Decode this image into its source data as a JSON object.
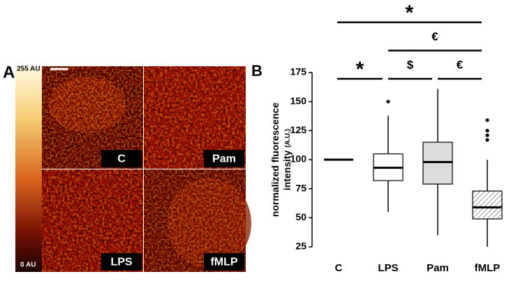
{
  "panel_a": {
    "label": "A",
    "colorbar_max": "255 AU",
    "colorbar_min": "0 AU",
    "images": [
      "C",
      "Pam",
      "LPS",
      "fMLP"
    ]
  },
  "chart_data": {
    "type": "box",
    "panel_label": "B",
    "ylabel": [
      "normalized fluorescence",
      "intensity"
    ],
    "ylabel_unit": "(A.U.)",
    "categories": [
      "C",
      "LPS",
      "Pam",
      "fMLP"
    ],
    "stats": [
      {
        "min": 100,
        "q1": 100,
        "median": 100,
        "q3": 100,
        "max": 100,
        "outliers": [],
        "fill": "none"
      },
      {
        "min": 55,
        "q1": 82,
        "median": 93,
        "q3": 105,
        "max": 138,
        "outliers": [
          150
        ],
        "fill": "#ffffff"
      },
      {
        "min": 35,
        "q1": 79,
        "median": 98,
        "q3": 115,
        "max": 161,
        "outliers": [],
        "fill": "#dcdcdc"
      },
      {
        "min": 25,
        "q1": 49,
        "median": 59,
        "q3": 73,
        "max": 100,
        "outliers": [
          117,
          121,
          125,
          134
        ],
        "fill": "hatch"
      }
    ],
    "ylim": [
      25,
      175
    ],
    "yticks": [
      25,
      50,
      75,
      100,
      125,
      150,
      175
    ],
    "annotations": [
      {
        "text": "*",
        "groups": [
          "C",
          "fMLP"
        ]
      },
      {
        "text": "€",
        "groups": [
          "LPS",
          "fMLP"
        ]
      },
      {
        "text": "*",
        "groups": [
          "C",
          "LPS"
        ]
      },
      {
        "text": "$",
        "groups": [
          "LPS",
          "Pam"
        ]
      },
      {
        "text": "€",
        "groups": [
          "Pam",
          "fMLP"
        ]
      }
    ]
  }
}
